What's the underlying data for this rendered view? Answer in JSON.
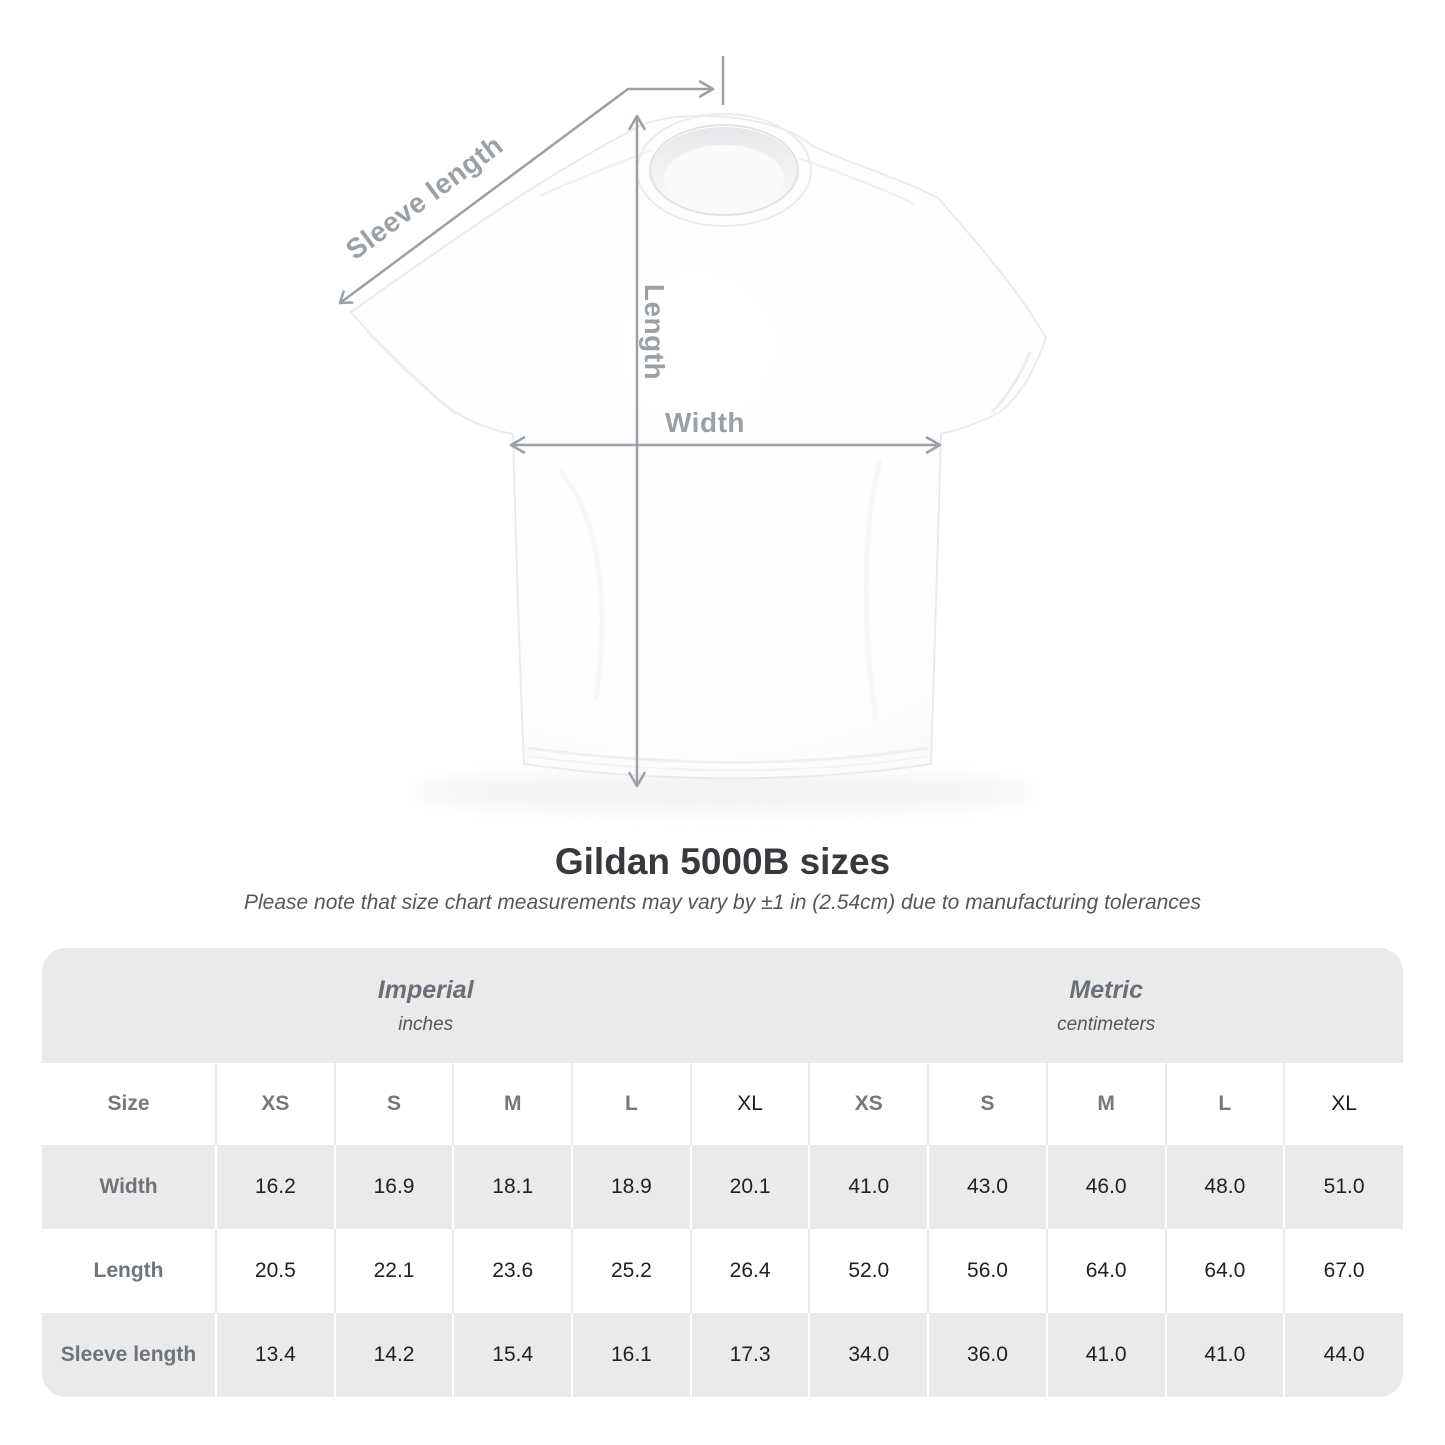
{
  "title": "Gildan 5000B sizes",
  "subtitle": "Please note that size chart measurements may vary by ±1 in (2.54cm) due to manufacturing tolerances",
  "diagram": {
    "sleeve_length_label": "Sleeve length",
    "length_label": "Length",
    "width_label": "Width"
  },
  "table": {
    "size_header": "Size",
    "groups": [
      {
        "label": "Imperial",
        "unit": "inches"
      },
      {
        "label": "Metric",
        "unit": "centimeters"
      }
    ],
    "sizes": [
      "XS",
      "S",
      "M",
      "L",
      "XL",
      "XS",
      "S",
      "M",
      "L",
      "XL"
    ],
    "rows": [
      {
        "label": "Width",
        "values": [
          "16.2",
          "16.9",
          "18.1",
          "18.9",
          "20.1",
          "41.0",
          "43.0",
          "46.0",
          "48.0",
          "51.0"
        ]
      },
      {
        "label": "Length",
        "values": [
          "20.5",
          "22.1",
          "23.6",
          "25.2",
          "26.4",
          "52.0",
          "56.0",
          "64.0",
          "64.0",
          "67.0"
        ]
      },
      {
        "label": "Sleeve length",
        "values": [
          "13.4",
          "14.2",
          "15.4",
          "16.1",
          "17.3",
          "34.0",
          "36.0",
          "41.0",
          "41.0",
          "44.0"
        ]
      }
    ]
  },
  "colors": {
    "band_gray": "#eaeaeb",
    "annotation_gray": "#9aa0a5",
    "title_text": "#37393c",
    "muted_label": "#6f747a",
    "value_text": "#202124",
    "xl_text": "#1b1c1e"
  },
  "chart_data": {
    "type": "table",
    "title": "Gildan 5000B sizes",
    "note": "Please note that size chart measurements may vary by ±1 in (2.54cm) due to manufacturing tolerances",
    "column_groups": [
      "Imperial (inches)",
      "Metric (centimeters)"
    ],
    "columns": [
      "Size",
      "XS",
      "S",
      "M",
      "L",
      "XL",
      "XS",
      "S",
      "M",
      "L",
      "XL"
    ],
    "rows": [
      [
        "Width",
        16.2,
        16.9,
        18.1,
        18.9,
        20.1,
        41.0,
        43.0,
        46.0,
        48.0,
        51.0
      ],
      [
        "Length",
        20.5,
        22.1,
        23.6,
        25.2,
        26.4,
        52.0,
        56.0,
        64.0,
        64.0,
        67.0
      ],
      [
        "Sleeve length",
        13.4,
        14.2,
        15.4,
        16.1,
        17.3,
        34.0,
        36.0,
        41.0,
        41.0,
        44.0
      ]
    ],
    "measurement_labels": [
      "Sleeve length",
      "Length",
      "Width"
    ]
  }
}
